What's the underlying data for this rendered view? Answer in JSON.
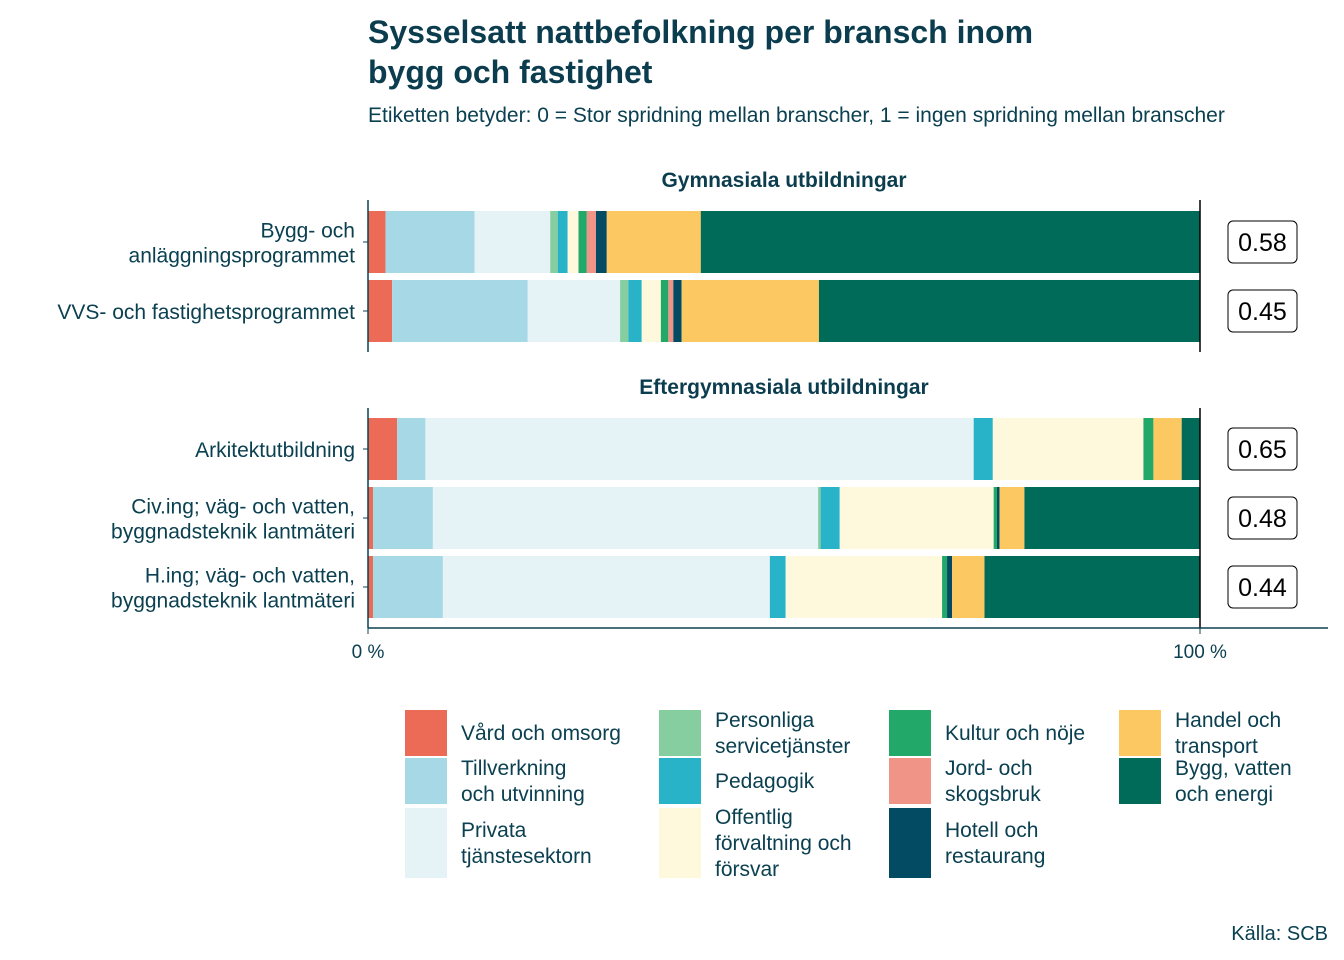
{
  "chart_data": {
    "type": "bar",
    "orientation": "horizontal",
    "stacked": true,
    "title_lines": [
      "Sysselsatt nattbefolkning per bransch inom",
      "bygg och fastighet"
    ],
    "subtitle": "Etiketten betyder: 0 = Stor spridning mellan branscher, 1 = ingen spridning mellan branscher",
    "x_ticks": [
      "0 %",
      "100 %"
    ],
    "xlim": [
      0,
      100
    ],
    "source": "Källa: SCB",
    "legend_position": "bottom",
    "legend": [
      {
        "label_lines": [
          "Vård och omsorg"
        ],
        "color": "#ec6b56"
      },
      {
        "label_lines": [
          "Tillverkning",
          "och utvinning"
        ],
        "color": "#a6d8e6"
      },
      {
        "label_lines": [
          "Privata",
          "tjänstesektorn"
        ],
        "color": "#e5f3f7"
      },
      {
        "label_lines": [
          "Personliga",
          "servicetjänster"
        ],
        "color": "#86cd9f"
      },
      {
        "label_lines": [
          "Pedagogik"
        ],
        "color": "#29b3c8"
      },
      {
        "label_lines": [
          "Offentlig",
          "förvaltning och",
          "försvar"
        ],
        "color": "#fef8dd"
      },
      {
        "label_lines": [
          "Kultur och nöje"
        ],
        "color": "#22a96a"
      },
      {
        "label_lines": [
          "Jord- och",
          "skogsbruk"
        ],
        "color": "#f09487"
      },
      {
        "label_lines": [
          "Hotell och",
          "restaurang"
        ],
        "color": "#024b63"
      },
      {
        "label_lines": [
          "Handel och",
          "transport"
        ],
        "color": "#fbc862"
      },
      {
        "label_lines": [
          "Bygg, vatten",
          "och energi"
        ],
        "color": "#006b58"
      }
    ],
    "panels": [
      {
        "title": "Gymnasiala utbildningar",
        "bars": [
          {
            "label_lines": [
              "Bygg- och",
              "anläggningsprogrammet"
            ],
            "score": "0.58",
            "values": [
              2.1,
              10.7,
              9.1,
              0.9,
              1.2,
              1.3,
              1.0,
              1.1,
              1.3,
              11.3,
              60.0
            ]
          },
          {
            "label_lines": [
              "VVS- och fastighetsprogrammet"
            ],
            "score": "0.45",
            "values": [
              2.9,
              16.3,
              11.1,
              1.0,
              1.6,
              2.3,
              0.9,
              0.6,
              1.0,
              16.5,
              45.8
            ]
          }
        ]
      },
      {
        "title": "Eftergymnasiala utbildningar",
        "bars": [
          {
            "label_lines": [
              "Arkitektutbildning"
            ],
            "score": "0.65",
            "values": [
              3.5,
              3.4,
              65.9,
              0.0,
              2.3,
              18.1,
              1.2,
              0.0,
              0.0,
              3.4,
              2.2
            ]
          },
          {
            "label_lines": [
              "Civ.ing; väg- och vatten,",
              "byggnadsteknik lantmäteri"
            ],
            "score": "0.48",
            "values": [
              0.6,
              7.2,
              46.3,
              0.3,
              2.3,
              18.5,
              0.4,
              0.0,
              0.3,
              3.0,
              21.1
            ]
          },
          {
            "label_lines": [
              "H.ing; väg- och vatten,",
              "byggnadsteknik lantmäteri"
            ],
            "score": "0.44",
            "values": [
              0.6,
              8.4,
              39.3,
              0.0,
              1.9,
              18.8,
              0.6,
              0.0,
              0.6,
              3.9,
              25.9
            ]
          }
        ]
      }
    ]
  }
}
